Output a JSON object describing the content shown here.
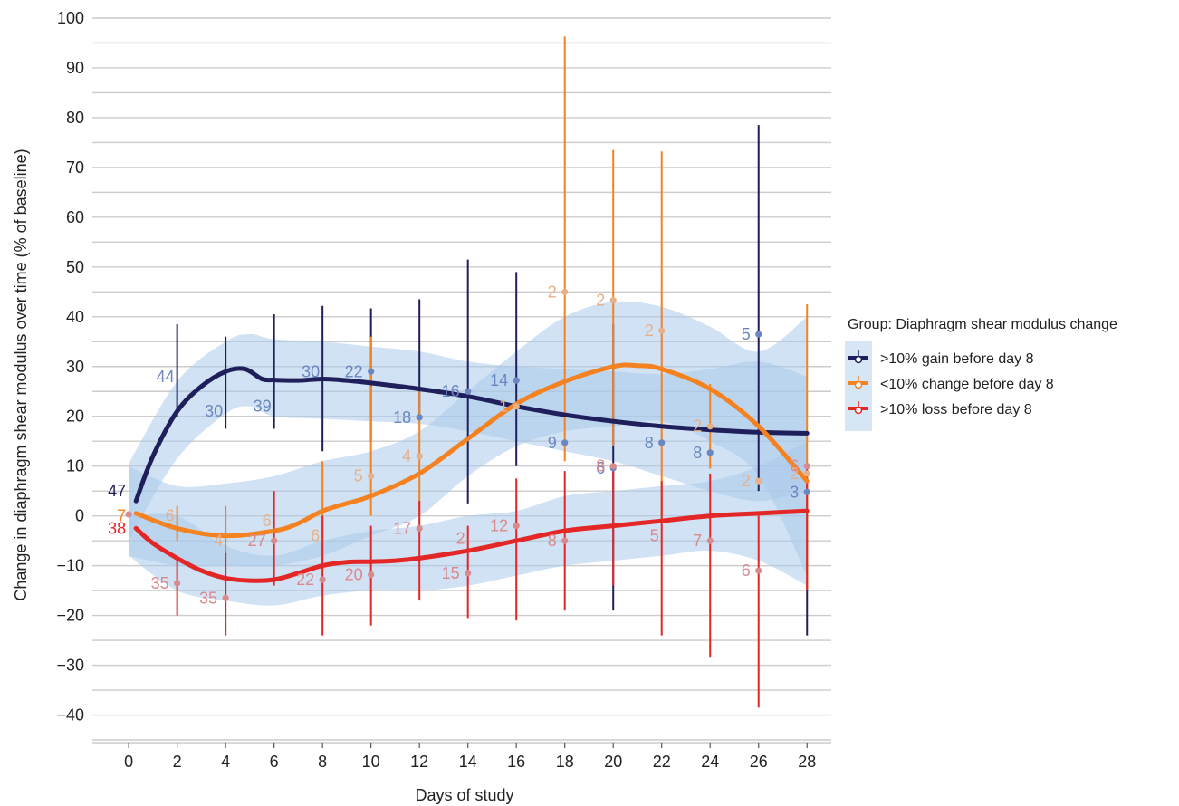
{
  "chart_data": {
    "type": "line",
    "xlabel": "Days of study",
    "ylabel": "Change in diaphragm shear modulus over time (% of baseline)",
    "xlim": [
      -1.5,
      29
    ],
    "ylim": [
      -45,
      100
    ],
    "xticks": [
      0,
      2,
      4,
      6,
      8,
      10,
      12,
      14,
      16,
      18,
      20,
      22,
      24,
      26,
      28
    ],
    "yticks": [
      -40,
      -30,
      -20,
      -10,
      0,
      10,
      20,
      30,
      40,
      50,
      60,
      70,
      80,
      90,
      100
    ],
    "y_minor_grid": [
      -45,
      -35,
      -25,
      -15,
      -5,
      5,
      15,
      25,
      35,
      45,
      55,
      65,
      75,
      85,
      95
    ],
    "x_tick_labels": [
      "0",
      "2",
      "4",
      "6",
      "8",
      "10",
      "12",
      "14",
      "16",
      "18",
      "20",
      "22",
      "24",
      "26",
      "28"
    ],
    "y_tick_labels": [
      "−40",
      "−30",
      "−20",
      "−10",
      "0",
      "10",
      "20",
      "30",
      "40",
      "50",
      "60",
      "70",
      "80",
      "90",
      "100"
    ],
    "grid": true,
    "legend": {
      "title": "Group: Diaphragm shear modulus change",
      "placement": "right"
    },
    "band_color": "#a9cbeb",
    "series": [
      {
        "name": ">10% gain before day 8",
        "color": "#1f1f5c",
        "point_color": "#6b86c0",
        "smooth": {
          "x": [
            0.3,
            1,
            2,
            3,
            4,
            4.8,
            5.5,
            6,
            7,
            8,
            9,
            10,
            12,
            14,
            16,
            18,
            20,
            22,
            24,
            26,
            28
          ],
          "y": [
            3,
            12,
            21,
            26,
            29,
            29.5,
            27.5,
            27.3,
            27.2,
            27.5,
            27.2,
            26.7,
            25.5,
            24,
            22,
            20.3,
            19,
            18,
            17.3,
            16.8,
            16.6
          ]
        },
        "band": {
          "x": [
            0,
            2,
            4,
            5,
            6,
            8,
            10,
            12,
            14,
            16,
            18,
            20,
            22,
            24,
            26,
            28
          ],
          "upper": [
            10.5,
            27,
            35,
            36.5,
            35.5,
            35,
            34,
            33,
            31,
            30,
            29.5,
            29,
            28.5,
            29.5,
            31,
            28
          ],
          "lower": [
            -5,
            11.5,
            20.5,
            22,
            20,
            19.5,
            19,
            18.5,
            17,
            15,
            13,
            11,
            8,
            5,
            3,
            5
          ]
        },
        "points": [
          {
            "x": 10,
            "y": 29,
            "n": "22"
          },
          {
            "x": 12,
            "y": 19.8,
            "n": "18"
          },
          {
            "x": 14,
            "y": 25,
            "n": "16"
          },
          {
            "x": 16,
            "y": 27.2,
            "n": "14"
          },
          {
            "x": 18,
            "y": 14.7,
            "n": "9"
          },
          {
            "x": 20,
            "y": 9.6,
            "n": "6"
          },
          {
            "x": 22,
            "y": 14.7,
            "n": "8"
          },
          {
            "x": 24,
            "y": 12.7,
            "n": "8"
          },
          {
            "x": 26,
            "y": 36.5,
            "n": "5"
          },
          {
            "x": 28,
            "y": 4.8,
            "n": "3"
          }
        ],
        "n_labels": [
          {
            "x": 0,
            "y": 5,
            "n": "47"
          },
          {
            "x": 2,
            "y": 28,
            "n": "44"
          },
          {
            "x": 4,
            "y": 21,
            "n": "30"
          },
          {
            "x": 6,
            "y": 22,
            "n": "39"
          },
          {
            "x": 8,
            "y": 29,
            "n": "30"
          }
        ],
        "error_bars": [
          {
            "x": 2,
            "low": 20,
            "high": 38.5
          },
          {
            "x": 4,
            "low": 17.5,
            "high": 36
          },
          {
            "x": 6,
            "low": 17.5,
            "high": 40.5
          },
          {
            "x": 8,
            "low": 13,
            "high": 42.2
          },
          {
            "x": 10,
            "low": 15,
            "high": 41.7
          },
          {
            "x": 12,
            "low": 20,
            "high": 43.5
          },
          {
            "x": 14,
            "low": 2.5,
            "high": 51.5
          },
          {
            "x": 16,
            "low": 10,
            "high": 49
          },
          {
            "x": 20,
            "low": -19,
            "high": 38.5
          },
          {
            "x": 26,
            "low": 5,
            "high": 78.5
          },
          {
            "x": 28,
            "low": -24,
            "high": 10
          }
        ]
      },
      {
        "name": "<10% change before day 8",
        "color": "#f48221",
        "point_color": "#e8b088",
        "smooth": {
          "x": [
            0.3,
            2,
            4,
            6,
            7,
            8,
            9,
            10,
            12,
            14,
            16,
            18,
            20,
            21,
            22,
            24,
            26,
            28
          ],
          "y": [
            0.5,
            -2.5,
            -4,
            -3,
            -1.5,
            1,
            2.5,
            4,
            8.5,
            15.5,
            22.5,
            27,
            30,
            30.2,
            29.5,
            25.5,
            18,
            7
          ]
        },
        "band": {
          "x": [
            0,
            2,
            4,
            6,
            8,
            10,
            12,
            14,
            16,
            18,
            20,
            22,
            24,
            26,
            28
          ],
          "upper": [
            10,
            6,
            6.5,
            8,
            11,
            13,
            17,
            25,
            33,
            40,
            43,
            42,
            38,
            33,
            40
          ],
          "lower": [
            -8,
            -10,
            -10,
            -10,
            -8,
            -4,
            0,
            8,
            14,
            17,
            18,
            19,
            15,
            8,
            -12
          ]
        },
        "points": [
          {
            "x": 10,
            "y": 8,
            "n": "5"
          },
          {
            "x": 12,
            "y": 12,
            "n": "4"
          },
          {
            "x": 16,
            "y": 22,
            "n": "1"
          },
          {
            "x": 18,
            "y": 45,
            "n": "2"
          },
          {
            "x": 20,
            "y": 43.3,
            "n": "2"
          },
          {
            "x": 22,
            "y": 37.2,
            "n": "2"
          },
          {
            "x": 24,
            "y": 18,
            "n": "2"
          },
          {
            "x": 26,
            "y": 7,
            "n": "2"
          },
          {
            "x": 28,
            "y": 8.5,
            "n": "2"
          }
        ],
        "n_labels": [
          {
            "x": 0,
            "y": 0,
            "n": "7"
          },
          {
            "x": 2,
            "y": 0,
            "n": "6"
          },
          {
            "x": 4,
            "y": -5,
            "n": "4"
          },
          {
            "x": 6,
            "y": -1,
            "n": "6"
          },
          {
            "x": 8,
            "y": -4,
            "n": "6"
          }
        ],
        "error_bars": [
          {
            "x": 2,
            "low": -5,
            "high": 2
          },
          {
            "x": 4,
            "low": -8,
            "high": 2
          },
          {
            "x": 8,
            "low": -10,
            "high": 11
          },
          {
            "x": 10,
            "low": 0,
            "high": 36
          },
          {
            "x": 12,
            "low": 0,
            "high": 25
          },
          {
            "x": 18,
            "low": 11,
            "high": 96.3
          },
          {
            "x": 20,
            "low": 14,
            "high": 73.5
          },
          {
            "x": 22,
            "low": 0,
            "high": 73.2
          },
          {
            "x": 24,
            "low": 9.5,
            "high": 26.5
          },
          {
            "x": 28,
            "low": -15,
            "high": 42.5
          }
        ]
      },
      {
        "name": ">10% loss before day 8",
        "color": "#e32626",
        "point_color": "#d98a8f",
        "smooth": {
          "x": [
            0.3,
            1,
            2,
            3,
            4,
            5,
            6,
            7,
            8,
            9,
            10,
            11,
            12,
            14,
            16,
            18,
            20,
            22,
            24,
            26,
            28
          ],
          "y": [
            -2.5,
            -5.5,
            -8.5,
            -11,
            -12.5,
            -13,
            -12.8,
            -11.5,
            -10,
            -9.3,
            -9.2,
            -9,
            -8.5,
            -7,
            -5,
            -3,
            -2,
            -1,
            0,
            0.5,
            1
          ]
        },
        "band": {
          "x": [
            0,
            2,
            4,
            6,
            8,
            10,
            12,
            14,
            16,
            18,
            20,
            22,
            24,
            26,
            28
          ],
          "upper": [
            0,
            0,
            -6,
            -8,
            -5,
            -3,
            -2,
            0,
            1,
            4,
            5,
            6,
            7,
            10,
            15
          ],
          "lower": [
            -8,
            -15,
            -17,
            -18,
            -16,
            -15,
            -15,
            -14,
            -12,
            -10,
            -9,
            -8,
            -7,
            -9,
            -14
          ]
        },
        "points": [
          {
            "x": 0,
            "y": 0.3,
            "n": ""
          },
          {
            "x": 2,
            "y": -13.5,
            "n": "35"
          },
          {
            "x": 4,
            "y": -16.5,
            "n": "35"
          },
          {
            "x": 6,
            "y": -5,
            "n": "27"
          },
          {
            "x": 8,
            "y": -12.8,
            "n": "22"
          },
          {
            "x": 10,
            "y": -11.8,
            "n": "20"
          },
          {
            "x": 12,
            "y": -2.5,
            "n": "17"
          },
          {
            "x": 14,
            "y": -11.5,
            "n": "15"
          },
          {
            "x": 16,
            "y": -2,
            "n": "12"
          },
          {
            "x": 18,
            "y": -5,
            "n": "8"
          },
          {
            "x": 20,
            "y": 10,
            "n": "8"
          },
          {
            "x": 24,
            "y": -5,
            "n": "7"
          },
          {
            "x": 26,
            "y": -11,
            "n": "6"
          },
          {
            "x": 28,
            "y": 10,
            "n": "6"
          }
        ],
        "n_labels": [
          {
            "x": 0,
            "y": -2.5,
            "n": "38"
          },
          {
            "x": 14,
            "y": -4.5,
            "n": "2"
          },
          {
            "x": 22,
            "y": -4,
            "n": "5"
          }
        ],
        "error_bars": [
          {
            "x": 2,
            "low": -20,
            "high": -8
          },
          {
            "x": 4,
            "low": -24,
            "high": -7.5
          },
          {
            "x": 6,
            "low": -14,
            "high": 5
          },
          {
            "x": 8,
            "low": -24,
            "high": 0
          },
          {
            "x": 10,
            "low": -22,
            "high": -2
          },
          {
            "x": 12,
            "low": -17,
            "high": 3
          },
          {
            "x": 14,
            "low": -20.5,
            "high": -2
          },
          {
            "x": 16,
            "low": -21,
            "high": 7.5
          },
          {
            "x": 18,
            "low": -19,
            "high": 9
          },
          {
            "x": 20,
            "low": -14,
            "high": 10
          },
          {
            "x": 22,
            "low": -24,
            "high": 7
          },
          {
            "x": 24,
            "low": -28.5,
            "high": 8.5
          },
          {
            "x": 26,
            "low": -38.5,
            "high": 0
          },
          {
            "x": 28,
            "low": -15,
            "high": 10
          }
        ]
      }
    ]
  }
}
